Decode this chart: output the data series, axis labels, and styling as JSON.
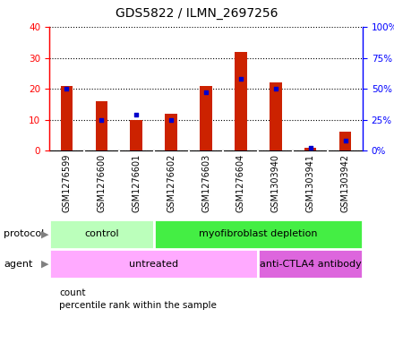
{
  "title": "GDS5822 / ILMN_2697256",
  "samples": [
    "GSM1276599",
    "GSM1276600",
    "GSM1276601",
    "GSM1276602",
    "GSM1276603",
    "GSM1276604",
    "GSM1303940",
    "GSM1303941",
    "GSM1303942"
  ],
  "counts": [
    21,
    16,
    10,
    12,
    21,
    32,
    22,
    1,
    6
  ],
  "percentiles": [
    50,
    25,
    29,
    25,
    47,
    58,
    50,
    2,
    8
  ],
  "ylim_left": [
    0,
    40
  ],
  "ylim_right": [
    0,
    100
  ],
  "yticks_left": [
    0,
    10,
    20,
    30,
    40
  ],
  "yticks_right": [
    0,
    25,
    50,
    75,
    100
  ],
  "ytick_labels_right": [
    "0%",
    "25%",
    "50%",
    "75%",
    "100%"
  ],
  "bar_color": "#cc2200",
  "dot_color": "#0000cc",
  "bar_width": 0.35,
  "protocol_groups": [
    {
      "label": "control",
      "start": 0,
      "end": 3,
      "color": "#bbffbb"
    },
    {
      "label": "myofibroblast depletion",
      "start": 3,
      "end": 9,
      "color": "#44ee44"
    }
  ],
  "agent_groups": [
    {
      "label": "untreated",
      "start": 0,
      "end": 6,
      "color": "#ffaaff"
    },
    {
      "label": "anti-CTLA4 antibody",
      "start": 6,
      "end": 9,
      "color": "#dd66dd"
    }
  ],
  "protocol_label": "protocol",
  "agent_label": "agent",
  "legend_count_label": "count",
  "legend_pct_label": "percentile rank within the sample",
  "tick_bg_color": "#cccccc",
  "plot_bg": "#ffffff",
  "title_fontsize": 10,
  "tick_fontsize": 6.5,
  "label_fontsize": 7.5,
  "annot_fontsize": 8,
  "row_label_fontsize": 8
}
